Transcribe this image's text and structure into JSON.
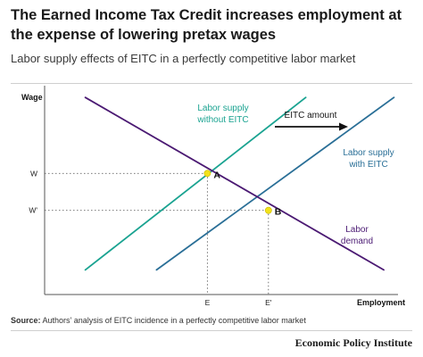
{
  "header": {
    "title": "The Earned Income Tax Credit increases employment at the expense of lowering pretax wages",
    "subtitle": "Labor supply effects of EITC in a perfectly competitive labor market"
  },
  "chart_data": {
    "type": "line",
    "xlabel": "Employment",
    "ylabel": "Wage",
    "xlim": [
      0,
      10
    ],
    "ylim": [
      0,
      10
    ],
    "x_tick_labels": [
      {
        "x": 4.8,
        "label": "E"
      },
      {
        "x": 6.6,
        "label": "E'"
      }
    ],
    "y_tick_labels": [
      {
        "y": 5.9,
        "label": "W"
      },
      {
        "y": 4.1,
        "label": "W'"
      }
    ],
    "series": [
      {
        "name": "Labor supply without EITC",
        "color": "#1aa391",
        "points": [
          [
            1.2,
            1.2
          ],
          [
            7.7,
            9.6
          ]
        ]
      },
      {
        "name": "Labor supply with EITC",
        "color": "#2a6f97",
        "points": [
          [
            3.3,
            1.2
          ],
          [
            10.3,
            9.6
          ]
        ]
      },
      {
        "name": "Labor demand",
        "color": "#4b1a73",
        "points": [
          [
            1.2,
            9.6
          ],
          [
            10.0,
            1.2
          ]
        ]
      }
    ],
    "equilibria": [
      {
        "label": "A",
        "x": 4.8,
        "y": 5.9
      },
      {
        "label": "B",
        "x": 6.6,
        "y": 4.1
      }
    ],
    "annotation": {
      "label": "EITC amount"
    },
    "colors": {
      "marker": "#f2e21b",
      "axis": "#555555",
      "guide": "#666666",
      "arrow": "#111111"
    }
  },
  "source": {
    "label": "Source:",
    "text": " Authors’ analysis of EITC incidence in a perfectly competitive labor market"
  },
  "brand": "Economic Policy Institute"
}
